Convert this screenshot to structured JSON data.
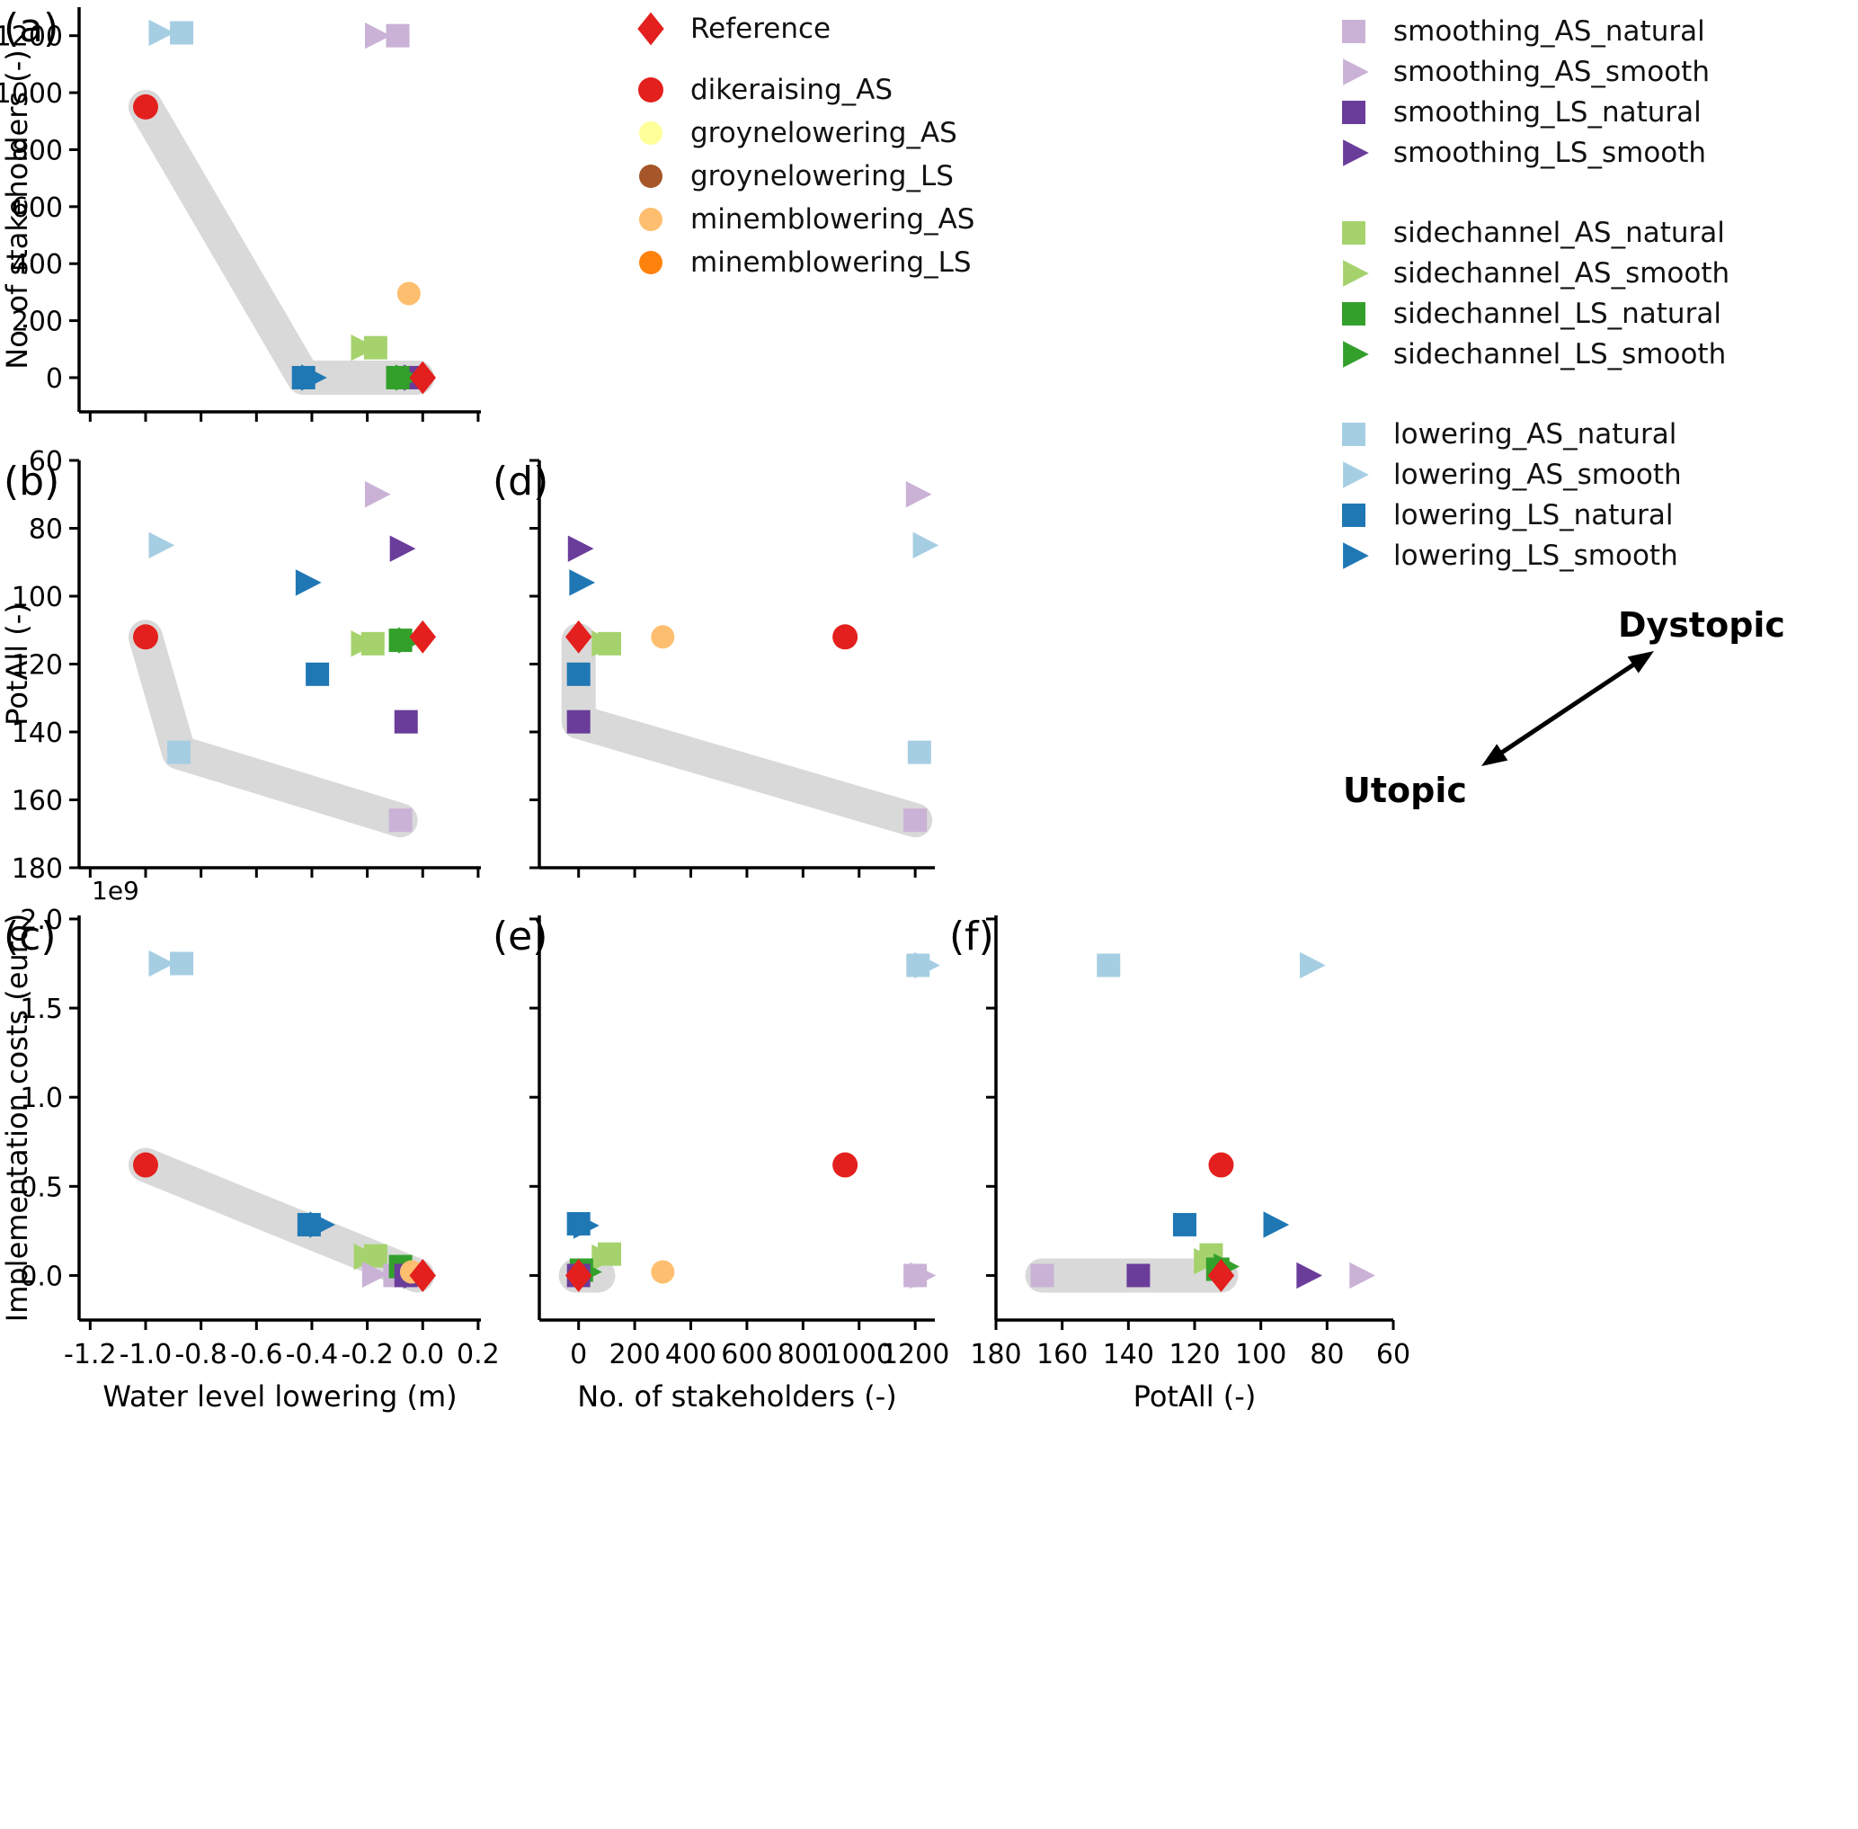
{
  "figure": {
    "background": "#ffffff",
    "band_color": "#d9d9d9",
    "annotation": {
      "dystopic_label": "Dystopic",
      "utopic_label": "Utopic"
    }
  },
  "series_styles": {
    "Reference": {
      "shape": "diamond",
      "color": "#e3201d",
      "size": 16
    },
    "dikeraising_AS": {
      "shape": "circle",
      "color": "#e3201d",
      "size": 14
    },
    "groynelowering_AS": {
      "shape": "circle",
      "color": "#ffff99",
      "size": 13
    },
    "groynelowering_LS": {
      "shape": "circle",
      "color": "#a65628",
      "size": 13
    },
    "minemblowering_AS": {
      "shape": "circle",
      "color": "#fdbf6f",
      "size": 13
    },
    "minemblowering_LS": {
      "shape": "circle",
      "color": "#ff820d",
      "size": 13
    },
    "smoothing_AS_natural": {
      "shape": "square",
      "color": "#cab2d6",
      "size": 13
    },
    "smoothing_AS_smooth": {
      "shape": "triangle-right",
      "color": "#cab2d6",
      "size": 14
    },
    "smoothing_LS_natural": {
      "shape": "square",
      "color": "#6a3d9a",
      "size": 13
    },
    "smoothing_LS_smooth": {
      "shape": "triangle-right",
      "color": "#6a3d9a",
      "size": 14
    },
    "sidechannel_AS_natural": {
      "shape": "square",
      "color": "#a5d26d",
      "size": 13
    },
    "sidechannel_AS_smooth": {
      "shape": "triangle-right",
      "color": "#a5d26d",
      "size": 14
    },
    "sidechannel_LS_natural": {
      "shape": "square",
      "color": "#33a02c",
      "size": 13
    },
    "sidechannel_LS_smooth": {
      "shape": "triangle-right",
      "color": "#33a02c",
      "size": 14
    },
    "lowering_AS_natural": {
      "shape": "square",
      "color": "#a6cee3",
      "size": 13
    },
    "lowering_AS_smooth": {
      "shape": "triangle-right",
      "color": "#a6cee3",
      "size": 14
    },
    "lowering_LS_natural": {
      "shape": "square",
      "color": "#1f78b4",
      "size": 13
    },
    "lowering_LS_smooth": {
      "shape": "triangle-right",
      "color": "#1f78b4",
      "size": 14
    }
  },
  "legend_main": {
    "items": [
      {
        "series": "Reference",
        "label": "Reference"
      },
      {
        "series": "dikeraising_AS",
        "label": "dikeraising_AS"
      },
      {
        "series": "groynelowering_AS",
        "label": "groynelowering_AS"
      },
      {
        "series": "groynelowering_LS",
        "label": "groynelowering_LS"
      },
      {
        "series": "minemblowering_AS",
        "label": "minemblowering_AS"
      },
      {
        "series": "minemblowering_LS",
        "label": "minemblowering_LS"
      }
    ]
  },
  "legend_series": {
    "groups": [
      {
        "items": [
          {
            "series": "smoothing_AS_natural",
            "label": "smoothing_AS_natural"
          },
          {
            "series": "smoothing_AS_smooth",
            "label": "smoothing_AS_smooth"
          },
          {
            "series": "smoothing_LS_natural",
            "label": "smoothing_LS_natural"
          },
          {
            "series": "smoothing_LS_smooth",
            "label": "smoothing_LS_smooth"
          }
        ]
      },
      {
        "items": [
          {
            "series": "sidechannel_AS_natural",
            "label": "sidechannel_AS_natural"
          },
          {
            "series": "sidechannel_AS_smooth",
            "label": "sidechannel_AS_smooth"
          },
          {
            "series": "sidechannel_LS_natural",
            "label": "sidechannel_LS_natural"
          },
          {
            "series": "sidechannel_LS_smooth",
            "label": "sidechannel_LS_smooth"
          }
        ]
      },
      {
        "items": [
          {
            "series": "lowering_AS_natural",
            "label": "lowering_AS_natural"
          },
          {
            "series": "lowering_AS_smooth",
            "label": "lowering_AS_smooth"
          },
          {
            "series": "lowering_LS_natural",
            "label": "lowering_LS_natural"
          },
          {
            "series": "lowering_LS_smooth",
            "label": "lowering_LS_smooth"
          }
        ]
      }
    ]
  },
  "chart_data": [
    {
      "id": "a",
      "letter": "(a)",
      "type": "scatter",
      "xlabel": "",
      "ylabel": "No. of stakeholders (-)",
      "xlim": [
        -1.24,
        0.21
      ],
      "ylim": [
        -120,
        1300
      ],
      "xticks": [
        -1.2,
        -1.0,
        -0.8,
        -0.6,
        -0.4,
        -0.2,
        0.0,
        0.2
      ],
      "xtick_labels": [],
      "yticks": [
        0,
        200,
        400,
        600,
        800,
        1000,
        1200
      ],
      "ytick_labels": [
        "0",
        "200",
        "400",
        "600",
        "800",
        "1000",
        "1200"
      ],
      "offset_text": "",
      "pareto_band": [
        [
          -1.0,
          950
        ],
        [
          -0.43,
          0
        ],
        [
          -0.02,
          0
        ]
      ],
      "points": [
        {
          "series": "lowering_AS_smooth",
          "x": -0.95,
          "y": 1210
        },
        {
          "series": "lowering_AS_natural",
          "x": -0.87,
          "y": 1210
        },
        {
          "series": "smoothing_AS_smooth",
          "x": -0.17,
          "y": 1200
        },
        {
          "series": "smoothing_AS_natural",
          "x": -0.09,
          "y": 1200
        },
        {
          "series": "dikeraising_AS",
          "x": -1.0,
          "y": 950
        },
        {
          "series": "minemblowering_AS",
          "x": -0.05,
          "y": 295
        },
        {
          "series": "sidechannel_AS_smooth",
          "x": -0.22,
          "y": 105
        },
        {
          "series": "sidechannel_AS_natural",
          "x": -0.17,
          "y": 105
        },
        {
          "series": "lowering_LS_natural",
          "x": -0.43,
          "y": 0
        },
        {
          "series": "lowering_LS_smooth",
          "x": -0.4,
          "y": 0
        },
        {
          "series": "smoothing_LS_natural",
          "x": -0.05,
          "y": 0
        },
        {
          "series": "smoothing_LS_smooth",
          "x": -0.03,
          "y": 0
        },
        {
          "series": "sidechannel_LS_natural",
          "x": -0.09,
          "y": 0
        },
        {
          "series": "sidechannel_LS_smooth",
          "x": -0.06,
          "y": 0
        },
        {
          "series": "Reference",
          "x": 0.0,
          "y": 0
        }
      ]
    },
    {
      "id": "b",
      "letter": "(b)",
      "type": "scatter",
      "xlabel": "",
      "ylabel": "PotAll (-)",
      "xlim": [
        -1.24,
        0.21
      ],
      "ylim": [
        180,
        60
      ],
      "xticks": [
        -1.2,
        -1.0,
        -0.8,
        -0.6,
        -0.4,
        -0.2,
        0.0,
        0.2
      ],
      "xtick_labels": [],
      "yticks": [
        60,
        80,
        100,
        120,
        140,
        160,
        180
      ],
      "ytick_labels": [
        "60",
        "80",
        "100",
        "120",
        "140",
        "160",
        "180"
      ],
      "offset_text": "",
      "pareto_band": [
        [
          -1.0,
          112
        ],
        [
          -0.88,
          146
        ],
        [
          -0.08,
          166
        ]
      ],
      "points": [
        {
          "series": "smoothing_AS_smooth",
          "x": -0.17,
          "y": 70
        },
        {
          "series": "lowering_AS_smooth",
          "x": -0.95,
          "y": 85
        },
        {
          "series": "smoothing_LS_smooth",
          "x": -0.08,
          "y": 86
        },
        {
          "series": "lowering_LS_smooth",
          "x": -0.42,
          "y": 96
        },
        {
          "series": "dikeraising_AS",
          "x": -1.0,
          "y": 112
        },
        {
          "series": "sidechannel_AS_smooth",
          "x": -0.22,
          "y": 114
        },
        {
          "series": "sidechannel_AS_natural",
          "x": -0.18,
          "y": 114
        },
        {
          "series": "sidechannel_LS_natural",
          "x": -0.08,
          "y": 113
        },
        {
          "series": "sidechannel_LS_smooth",
          "x": -0.05,
          "y": 113
        },
        {
          "series": "lowering_LS_natural",
          "x": -0.38,
          "y": 123
        },
        {
          "series": "smoothing_LS_natural",
          "x": -0.06,
          "y": 137
        },
        {
          "series": "lowering_AS_natural",
          "x": -0.88,
          "y": 146
        },
        {
          "series": "smoothing_AS_natural",
          "x": -0.08,
          "y": 166
        },
        {
          "series": "Reference",
          "x": 0.0,
          "y": 112
        }
      ]
    },
    {
      "id": "c",
      "letter": "(c)",
      "type": "scatter",
      "xlabel": "Water level lowering (m)",
      "ylabel": "Implementation costs (euro)",
      "xlim": [
        -1.24,
        0.21
      ],
      "ylim": [
        -250000000.0,
        2020000000.0
      ],
      "xticks": [
        -1.2,
        -1.0,
        -0.8,
        -0.6,
        -0.4,
        -0.2,
        0.0,
        0.2
      ],
      "xtick_labels": [
        "-1.2",
        "-1.0",
        "-0.8",
        "-0.6",
        "-0.4",
        "-0.2",
        "0.0",
        "0.2"
      ],
      "yticks": [
        0,
        500000000.0,
        1000000000.0,
        1500000000.0,
        2000000000.0
      ],
      "ytick_labels": [
        "0.0",
        "0.5",
        "1.0",
        "1.5",
        "2.0"
      ],
      "offset_text": "1e9",
      "pareto_band": [
        [
          -1.0,
          620000000.0
        ],
        [
          -0.02,
          0
        ]
      ],
      "points": [
        {
          "series": "lowering_AS_smooth",
          "x": -0.95,
          "y": 1750000000.0
        },
        {
          "series": "lowering_AS_natural",
          "x": -0.87,
          "y": 1750000000.0
        },
        {
          "series": "dikeraising_AS",
          "x": -1.0,
          "y": 620000000.0
        },
        {
          "series": "lowering_LS_natural",
          "x": -0.41,
          "y": 285000000.0
        },
        {
          "series": "lowering_LS_smooth",
          "x": -0.37,
          "y": 285000000.0
        },
        {
          "series": "sidechannel_AS_smooth",
          "x": -0.21,
          "y": 105000000.0
        },
        {
          "series": "sidechannel_AS_natural",
          "x": -0.17,
          "y": 110000000.0
        },
        {
          "series": "smoothing_AS_smooth",
          "x": -0.18,
          "y": 5000000.0
        },
        {
          "series": "smoothing_AS_natural",
          "x": -0.1,
          "y": 0
        },
        {
          "series": "sidechannel_LS_natural",
          "x": -0.08,
          "y": 50000000.0
        },
        {
          "series": "sidechannel_LS_smooth",
          "x": -0.05,
          "y": 40000000.0
        },
        {
          "series": "smoothing_LS_natural",
          "x": -0.06,
          "y": 0
        },
        {
          "series": "smoothing_LS_smooth",
          "x": -0.03,
          "y": 0
        },
        {
          "series": "minemblowering_AS",
          "x": -0.04,
          "y": 20000000.0
        },
        {
          "series": "Reference",
          "x": 0.0,
          "y": 0
        }
      ]
    },
    {
      "id": "d",
      "letter": "(d)",
      "type": "scatter",
      "xlabel": "",
      "ylabel": "",
      "xlim": [
        -140,
        1270
      ],
      "ylim": [
        180,
        60
      ],
      "xticks": [
        0,
        200,
        400,
        600,
        800,
        1000,
        1200
      ],
      "xtick_labels": [],
      "yticks": [
        60,
        80,
        100,
        120,
        140,
        160,
        180
      ],
      "ytick_labels": [],
      "offset_text": "",
      "pareto_band": [
        [
          0,
          113
        ],
        [
          0,
          137
        ],
        [
          1200,
          166
        ]
      ],
      "points": [
        {
          "series": "smoothing_AS_smooth",
          "x": 1205,
          "y": 70
        },
        {
          "series": "lowering_AS_smooth",
          "x": 1230,
          "y": 85
        },
        {
          "series": "smoothing_LS_smooth",
          "x": 0,
          "y": 86
        },
        {
          "series": "lowering_LS_smooth",
          "x": 5,
          "y": 96
        },
        {
          "series": "dikeraising_AS",
          "x": 950,
          "y": 112
        },
        {
          "series": "sidechannel_AS_smooth",
          "x": 85,
          "y": 114
        },
        {
          "series": "sidechannel_AS_natural",
          "x": 110,
          "y": 114
        },
        {
          "series": "minemblowering_AS",
          "x": 300,
          "y": 112
        },
        {
          "series": "lowering_LS_natural",
          "x": 0,
          "y": 123
        },
        {
          "series": "smoothing_LS_natural",
          "x": 0,
          "y": 137
        },
        {
          "series": "lowering_AS_natural",
          "x": 1215,
          "y": 146
        },
        {
          "series": "smoothing_AS_natural",
          "x": 1200,
          "y": 166
        },
        {
          "series": "Reference",
          "x": 0,
          "y": 112
        }
      ]
    },
    {
      "id": "e",
      "letter": "(e)",
      "type": "scatter",
      "xlabel": "No. of stakeholders (-)",
      "ylabel": "",
      "xlim": [
        -140,
        1270
      ],
      "ylim": [
        -250000000.0,
        2020000000.0
      ],
      "xticks": [
        0,
        200,
        400,
        600,
        800,
        1000,
        1200
      ],
      "xtick_labels": [
        "0",
        "200",
        "400",
        "600",
        "800",
        "1000",
        "1200"
      ],
      "yticks": [
        0,
        500000000.0,
        1000000000.0,
        1500000000.0,
        2000000000.0
      ],
      "ytick_labels": [],
      "offset_text": "",
      "pareto_band": [
        [
          -10,
          0
        ],
        [
          70,
          0
        ]
      ],
      "points": [
        {
          "series": "lowering_AS_natural",
          "x": 1210,
          "y": 1740000000.0
        },
        {
          "series": "lowering_AS_smooth",
          "x": 1235,
          "y": 1740000000.0
        },
        {
          "series": "dikeraising_AS",
          "x": 950,
          "y": 620000000.0
        },
        {
          "series": "lowering_LS_natural",
          "x": 0,
          "y": 290000000.0
        },
        {
          "series": "lowering_LS_smooth",
          "x": 20,
          "y": 280000000.0
        },
        {
          "series": "sidechannel_AS_smooth",
          "x": 85,
          "y": 100000000.0
        },
        {
          "series": "sidechannel_AS_natural",
          "x": 110,
          "y": 120000000.0
        },
        {
          "series": "minemblowering_AS",
          "x": 300,
          "y": 20000000.0
        },
        {
          "series": "smoothing_AS_natural",
          "x": 1200,
          "y": 0
        },
        {
          "series": "smoothing_AS_smooth",
          "x": 1220,
          "y": 0
        },
        {
          "series": "sidechannel_LS_natural",
          "x": 10,
          "y": 30000000.0
        },
        {
          "series": "sidechannel_LS_smooth",
          "x": 30,
          "y": 20000000.0
        },
        {
          "series": "smoothing_LS_natural",
          "x": 0,
          "y": 0
        },
        {
          "series": "Reference",
          "x": 0,
          "y": 0
        }
      ]
    },
    {
      "id": "f",
      "letter": "(f)",
      "type": "scatter",
      "xlabel": "PotAll (-)",
      "ylabel": "",
      "xlim": [
        180,
        60
      ],
      "ylim": [
        -250000000.0,
        2020000000.0
      ],
      "xticks": [
        180,
        160,
        140,
        120,
        100,
        80,
        60
      ],
      "xtick_labels": [
        "180",
        "160",
        "140",
        "120",
        "100",
        "80",
        "60"
      ],
      "yticks": [
        0,
        500000000.0,
        1000000000.0,
        1500000000.0,
        2000000000.0
      ],
      "ytick_labels": [],
      "offset_text": "",
      "pareto_band": [
        [
          166,
          0
        ],
        [
          112,
          0
        ]
      ],
      "points": [
        {
          "series": "lowering_AS_natural",
          "x": 146,
          "y": 1740000000.0
        },
        {
          "series": "lowering_AS_smooth",
          "x": 85,
          "y": 1740000000.0
        },
        {
          "series": "dikeraising_AS",
          "x": 112,
          "y": 620000000.0
        },
        {
          "series": "lowering_LS_natural",
          "x": 123,
          "y": 285000000.0
        },
        {
          "series": "lowering_LS_smooth",
          "x": 96,
          "y": 285000000.0
        },
        {
          "series": "sidechannel_AS_natural",
          "x": 115,
          "y": 115000000.0
        },
        {
          "series": "sidechannel_AS_smooth",
          "x": 117,
          "y": 80000000.0
        },
        {
          "series": "sidechannel_LS_smooth",
          "x": 111,
          "y": 50000000.0
        },
        {
          "series": "sidechannel_LS_natural",
          "x": 113,
          "y": 35000000.0
        },
        {
          "series": "smoothing_AS_natural",
          "x": 166,
          "y": 0
        },
        {
          "series": "smoothing_LS_natural",
          "x": 137,
          "y": 0
        },
        {
          "series": "smoothing_LS_smooth",
          "x": 86,
          "y": 0
        },
        {
          "series": "smoothing_AS_smooth",
          "x": 70,
          "y": 0
        },
        {
          "series": "Reference",
          "x": 112,
          "y": 0
        }
      ]
    }
  ]
}
